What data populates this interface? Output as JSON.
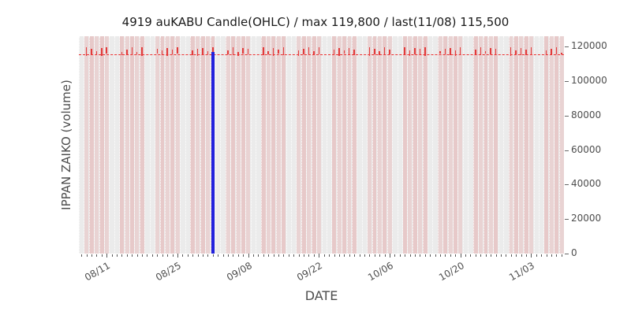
{
  "chart_data": {
    "type": "candlestick",
    "title": "4919 auKABU Candle(OHLC) / max 119,800 / last(11/08) 115,500",
    "xlabel": "DATE",
    "ylabel": "IPPAN ZAIKO (volume)",
    "ylim": [
      0,
      126000
    ],
    "yticks": [
      0,
      20000,
      40000,
      60000,
      80000,
      100000,
      120000
    ],
    "xticks": [
      {
        "label": "08/11",
        "day": 5
      },
      {
        "label": "08/25",
        "day": 19
      },
      {
        "label": "09/08",
        "day": 33
      },
      {
        "label": "09/22",
        "day": 47
      },
      {
        "label": "10/06",
        "day": 61
      },
      {
        "label": "10/20",
        "day": 75
      },
      {
        "label": "11/03",
        "day": 89
      }
    ],
    "calendar_days": 96,
    "grid": "vertical daily white dotted lines, no horizontal grid",
    "legend": "none",
    "max_price": 119800,
    "last_date": "11/08",
    "last_price": 115500,
    "reference_line": {
      "value": 115500,
      "color": "#ee3333",
      "style": "dashed"
    },
    "highlight_bar": {
      "calendar_day": 26,
      "value": 117000,
      "color": "#2121dd"
    },
    "colors": {
      "plot_bg": "#ebebeb",
      "day_band": "rgba(225,135,135,0.24)",
      "candle": "#e23b3b",
      "highlight": "#2121dd",
      "tick_text": "#4d4d4d"
    },
    "candles": [
      [
        114800,
        119800
      ],
      [
        115200,
        118600
      ],
      [
        115500,
        117400
      ],
      [
        114600,
        119200
      ],
      [
        115800,
        119800
      ],
      [
        115100,
        117000
      ],
      [
        114900,
        118300
      ],
      [
        115600,
        119500
      ],
      [
        115300,
        116900
      ],
      [
        114700,
        119800
      ],
      [
        115900,
        118700
      ],
      [
        115200,
        117600
      ],
      [
        114800,
        119100
      ],
      [
        115500,
        118200
      ],
      [
        116000,
        119800
      ],
      [
        115100,
        117900
      ],
      [
        114600,
        118500
      ],
      [
        115700,
        119300
      ],
      [
        115300,
        117100
      ],
      [
        114900,
        119800
      ],
      [
        115600,
        118000
      ],
      [
        115200,
        119400
      ],
      [
        114700,
        116800
      ],
      [
        115800,
        119000
      ],
      [
        115400,
        118600
      ],
      [
        115000,
        119800
      ],
      [
        115600,
        117500
      ],
      [
        114800,
        119200
      ],
      [
        115900,
        118300
      ],
      [
        115200,
        119800
      ],
      [
        114600,
        117800
      ],
      [
        115500,
        118900
      ],
      [
        115100,
        119500
      ],
      [
        114900,
        117200
      ],
      [
        115700,
        119800
      ],
      [
        115300,
        118400
      ],
      [
        114700,
        119000
      ],
      [
        115800,
        117600
      ],
      [
        115400,
        119300
      ],
      [
        115000,
        118100
      ],
      [
        114800,
        119800
      ],
      [
        115600,
        118700
      ],
      [
        115200,
        117300
      ],
      [
        114900,
        119500
      ],
      [
        115700,
        118200
      ],
      [
        115300,
        119800
      ],
      [
        114600,
        117700
      ],
      [
        115500,
        119100
      ],
      [
        115100,
        118500
      ],
      [
        114800,
        119800
      ],
      [
        115900,
        117400
      ],
      [
        115400,
        118800
      ],
      [
        115000,
        119300
      ],
      [
        114700,
        117900
      ],
      [
        115600,
        119800
      ],
      [
        115200,
        118300
      ],
      [
        114900,
        119600
      ],
      [
        115800,
        117500
      ],
      [
        115300,
        119000
      ],
      [
        115000,
        118600
      ],
      [
        114800,
        119800
      ],
      [
        115500,
        117800
      ],
      [
        115100,
        119200
      ],
      [
        114900,
        118400
      ],
      [
        115700,
        119800
      ],
      [
        115300,
        117600
      ],
      [
        115000,
        118900
      ],
      [
        115500,
        119400
      ],
      [
        115500,
        116500
      ]
    ]
  }
}
